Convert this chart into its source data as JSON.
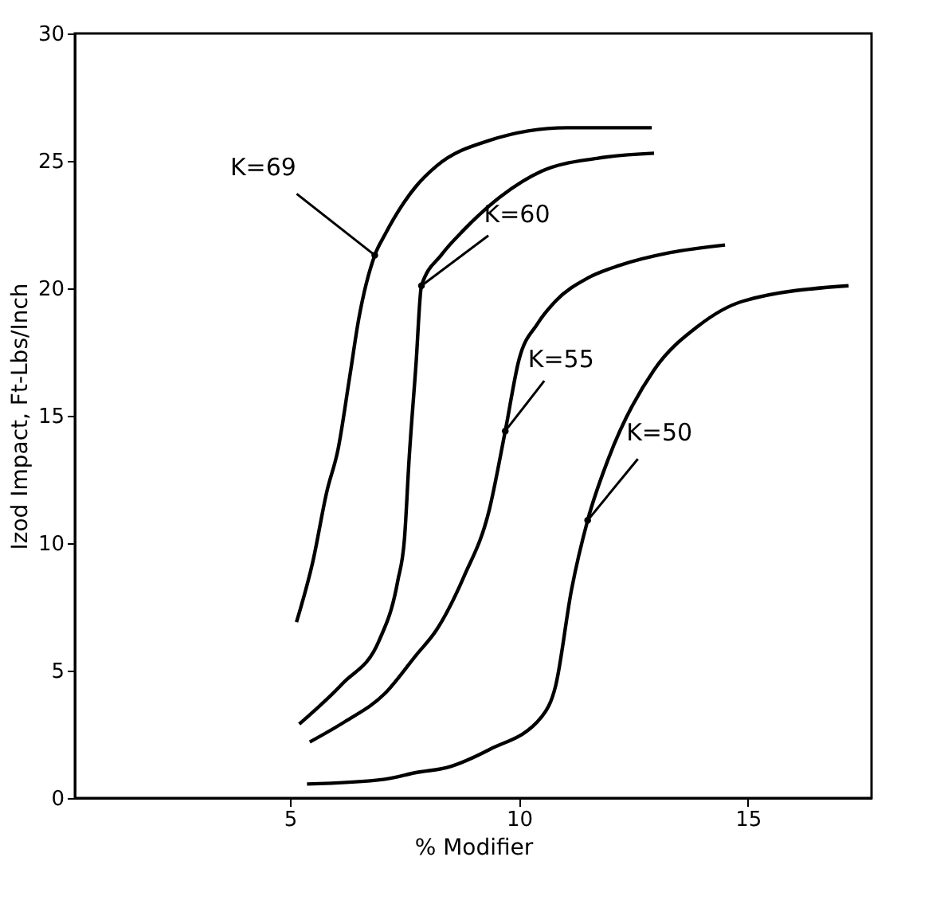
{
  "chart_data": {
    "type": "line",
    "xlabel": "% Modifier",
    "ylabel": "Izod Impact, Ft-Lbs/Inch",
    "xlim": [
      0.3,
      17.7
    ],
    "ylim": [
      0,
      30
    ],
    "xticks": [
      5,
      10,
      15
    ],
    "yticks": [
      0,
      5,
      10,
      15,
      20,
      25,
      30
    ],
    "grid": false,
    "legend": false,
    "marker": "none",
    "line_style": "solid",
    "series": [
      {
        "color": "#000000",
        "x": [
          5.14,
          5.5,
          5.8,
          6.05,
          6.3,
          6.5,
          6.85,
          7.07,
          7.75,
          8.2,
          9.35,
          11.05,
          12.9
        ],
        "values": [
          6.9,
          9.3,
          12,
          13.7,
          16.5,
          18.8,
          21.3,
          22.1,
          24.0,
          24.8,
          25.8,
          26.3,
          26.3
        ]
      },
      {
        "color": "#000000",
        "x": [
          5.2,
          6.15,
          6.95,
          7.35,
          7.5,
          7.6,
          7.75,
          7.87,
          8.3,
          8.8,
          9.6,
          10.5,
          11.7,
          12.95
        ],
        "values": [
          2.9,
          4.5,
          6.2,
          8.5,
          10.2,
          13.3,
          17,
          20.1,
          21.3,
          22.3,
          23.6,
          24.6,
          25.1,
          25.3
        ]
      },
      {
        "color": "#000000",
        "x": [
          5.43,
          6.2,
          7.07,
          7.75,
          8.2,
          8.8,
          9.35,
          9.7,
          10.0,
          10.4,
          10.8,
          11.5,
          12.2,
          13.3,
          14.5
        ],
        "values": [
          2.2,
          3.0,
          4.1,
          5.6,
          6.6,
          8.7,
          11.3,
          14.4,
          17.2,
          18.6,
          19.5,
          20.4,
          20.9,
          21.4,
          21.7
        ]
      },
      {
        "color": "#000000",
        "x": [
          5.37,
          7.07,
          7.75,
          8.43,
          9.35,
          10.5,
          10.8,
          11.15,
          11.5,
          11.95,
          12.95,
          13.9,
          14.9,
          17.2
        ],
        "values": [
          0.55,
          0.74,
          1.0,
          1.2,
          1.9,
          3.2,
          4.4,
          8.2,
          10.9,
          13.3,
          16.8,
          18.5,
          19.5,
          20.1
        ]
      }
    ],
    "annotations": [
      {
        "text": "K=69",
        "x": 6.85,
        "y": 21.3
      },
      {
        "text": "K=60",
        "x": 7.87,
        "y": 20.1
      },
      {
        "text": "K=55",
        "x": 9.7,
        "y": 14.4
      },
      {
        "text": "K=50",
        "x": 11.5,
        "y": 10.9
      }
    ]
  }
}
